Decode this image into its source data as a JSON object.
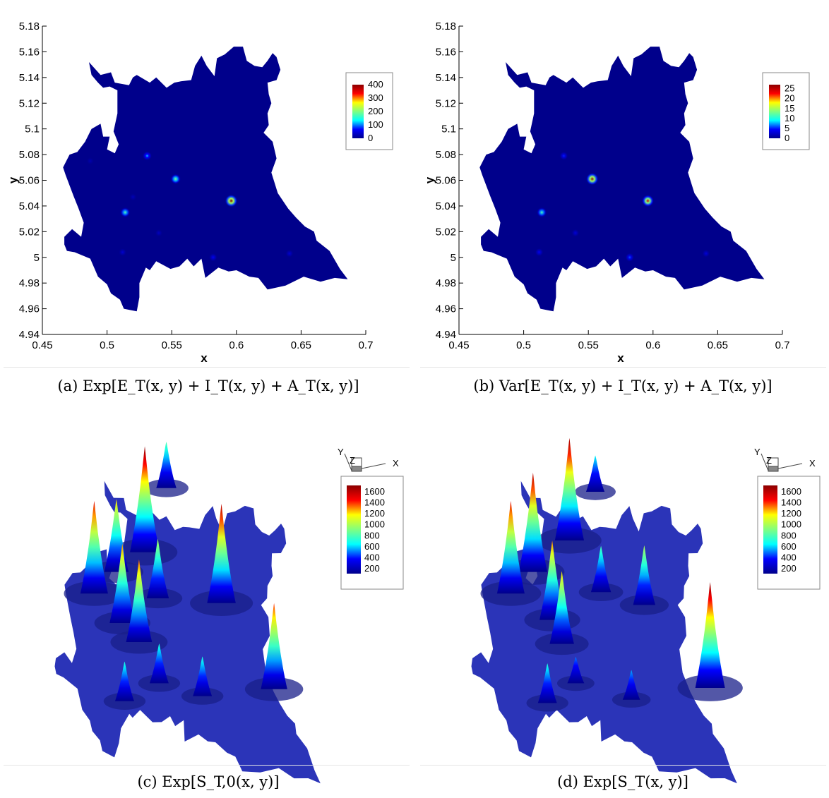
{
  "captions": {
    "a": "(a) Exp[E_T(x, y) + I_T(x, y) + A_T(x, y)]",
    "b": "(b) Var[E_T(x, y) + I_T(x, y) + A_T(x, y)]",
    "c": "(c) Exp[S_T,0(x, y)]",
    "d": "(d) Exp[S_T(x, y)]"
  },
  "colors": {
    "background_field": "#00008b",
    "colormap": [
      "#00008b",
      "#0000ff",
      "#00ffff",
      "#80ff80",
      "#ffff00",
      "#ff0000",
      "#8b0000"
    ]
  },
  "triad": {
    "x": "X",
    "y": "Y",
    "z": "Z"
  },
  "chart_data": [
    {
      "type": "heatmap",
      "panel": "a",
      "xlabel": "x",
      "ylabel": "y",
      "xlim": [
        0.45,
        0.7
      ],
      "ylim": [
        4.94,
        5.18
      ],
      "xticks": [
        "0.45",
        "0.5",
        "0.55",
        "0.6",
        "0.65",
        "0.7"
      ],
      "yticks": [
        "4.94",
        "4.96",
        "4.98",
        "5",
        "5.02",
        "5.04",
        "5.06",
        "5.08",
        "5.1",
        "5.12",
        "5.14",
        "5.16",
        "5.18"
      ],
      "legend": {
        "position": "right",
        "values": [
          "400",
          "300",
          "200",
          "100",
          "0"
        ],
        "min": 0,
        "max": 400
      },
      "hotspots": [
        {
          "x": 0.596,
          "y": 5.044,
          "value": 400
        },
        {
          "x": 0.553,
          "y": 5.061,
          "value": 200
        },
        {
          "x": 0.514,
          "y": 5.035,
          "value": 180
        },
        {
          "x": 0.531,
          "y": 5.079,
          "value": 120
        },
        {
          "x": 0.582,
          "y": 5.0,
          "value": 60
        },
        {
          "x": 0.512,
          "y": 5.004,
          "value": 40
        },
        {
          "x": 0.641,
          "y": 5.003,
          "value": 40
        },
        {
          "x": 0.54,
          "y": 5.019,
          "value": 30
        },
        {
          "x": 0.52,
          "y": 5.047,
          "value": 25
        },
        {
          "x": 0.487,
          "y": 5.075,
          "value": 20
        }
      ]
    },
    {
      "type": "heatmap",
      "panel": "b",
      "xlabel": "x",
      "ylabel": "y",
      "xlim": [
        0.45,
        0.7
      ],
      "ylim": [
        4.94,
        5.18
      ],
      "xticks": [
        "0.45",
        "0.5",
        "0.55",
        "0.6",
        "0.65",
        "0.7"
      ],
      "yticks": [
        "4.94",
        "4.96",
        "4.98",
        "5",
        "5.02",
        "5.04",
        "5.06",
        "5.08",
        "5.1",
        "5.12",
        "5.14",
        "5.16",
        "5.18"
      ],
      "legend": {
        "position": "right",
        "values": [
          "25",
          "20",
          "15",
          "10",
          "5",
          "0"
        ],
        "min": 0,
        "max": 27
      },
      "hotspots": [
        {
          "x": 0.553,
          "y": 5.061,
          "value": 26
        },
        {
          "x": 0.596,
          "y": 5.044,
          "value": 24
        },
        {
          "x": 0.514,
          "y": 5.035,
          "value": 12
        },
        {
          "x": 0.582,
          "y": 5.0,
          "value": 6
        },
        {
          "x": 0.531,
          "y": 5.079,
          "value": 5
        },
        {
          "x": 0.512,
          "y": 5.004,
          "value": 4
        },
        {
          "x": 0.641,
          "y": 5.003,
          "value": 3
        },
        {
          "x": 0.54,
          "y": 5.019,
          "value": 3
        }
      ]
    },
    {
      "type": "surface3d",
      "panel": "c",
      "legend": {
        "position": "top-right",
        "values": [
          "1600",
          "1400",
          "1200",
          "1000",
          "800",
          "600",
          "400",
          "200"
        ],
        "min": 100,
        "max": 1700
      },
      "peaks": [
        {
          "x": 0.49,
          "y": 5.07,
          "value": 1500
        },
        {
          "x": 0.505,
          "y": 5.09,
          "value": 1200
        },
        {
          "x": 0.525,
          "y": 5.11,
          "value": 1700
        },
        {
          "x": 0.535,
          "y": 5.16,
          "value": 800
        },
        {
          "x": 0.54,
          "y": 5.08,
          "value": 1000
        },
        {
          "x": 0.59,
          "y": 5.09,
          "value": 1600
        },
        {
          "x": 0.53,
          "y": 5.045,
          "value": 1350
        },
        {
          "x": 0.515,
          "y": 5.055,
          "value": 1300
        },
        {
          "x": 0.525,
          "y": 5.0,
          "value": 700
        },
        {
          "x": 0.55,
          "y": 5.02,
          "value": 700
        },
        {
          "x": 0.585,
          "y": 5.02,
          "value": 700
        },
        {
          "x": 0.64,
          "y": 5.04,
          "value": 1400
        }
      ]
    },
    {
      "type": "surface3d",
      "panel": "d",
      "legend": {
        "position": "top-right",
        "values": [
          "1600",
          "1400",
          "1200",
          "1000",
          "800",
          "600",
          "400",
          "200"
        ],
        "min": 100,
        "max": 1700
      },
      "peaks": [
        {
          "x": 0.49,
          "y": 5.07,
          "value": 1500
        },
        {
          "x": 0.505,
          "y": 5.09,
          "value": 1600
        },
        {
          "x": 0.53,
          "y": 5.12,
          "value": 1650
        },
        {
          "x": 0.545,
          "y": 5.16,
          "value": 650
        },
        {
          "x": 0.56,
          "y": 5.09,
          "value": 800
        },
        {
          "x": 0.595,
          "y": 5.09,
          "value": 1000
        },
        {
          "x": 0.535,
          "y": 5.045,
          "value": 1200
        },
        {
          "x": 0.525,
          "y": 5.06,
          "value": 1300
        },
        {
          "x": 0.53,
          "y": 5.0,
          "value": 700
        },
        {
          "x": 0.55,
          "y": 5.02,
          "value": 500
        },
        {
          "x": 0.595,
          "y": 5.02,
          "value": 550
        },
        {
          "x": 0.655,
          "y": 5.045,
          "value": 1700
        }
      ]
    }
  ]
}
